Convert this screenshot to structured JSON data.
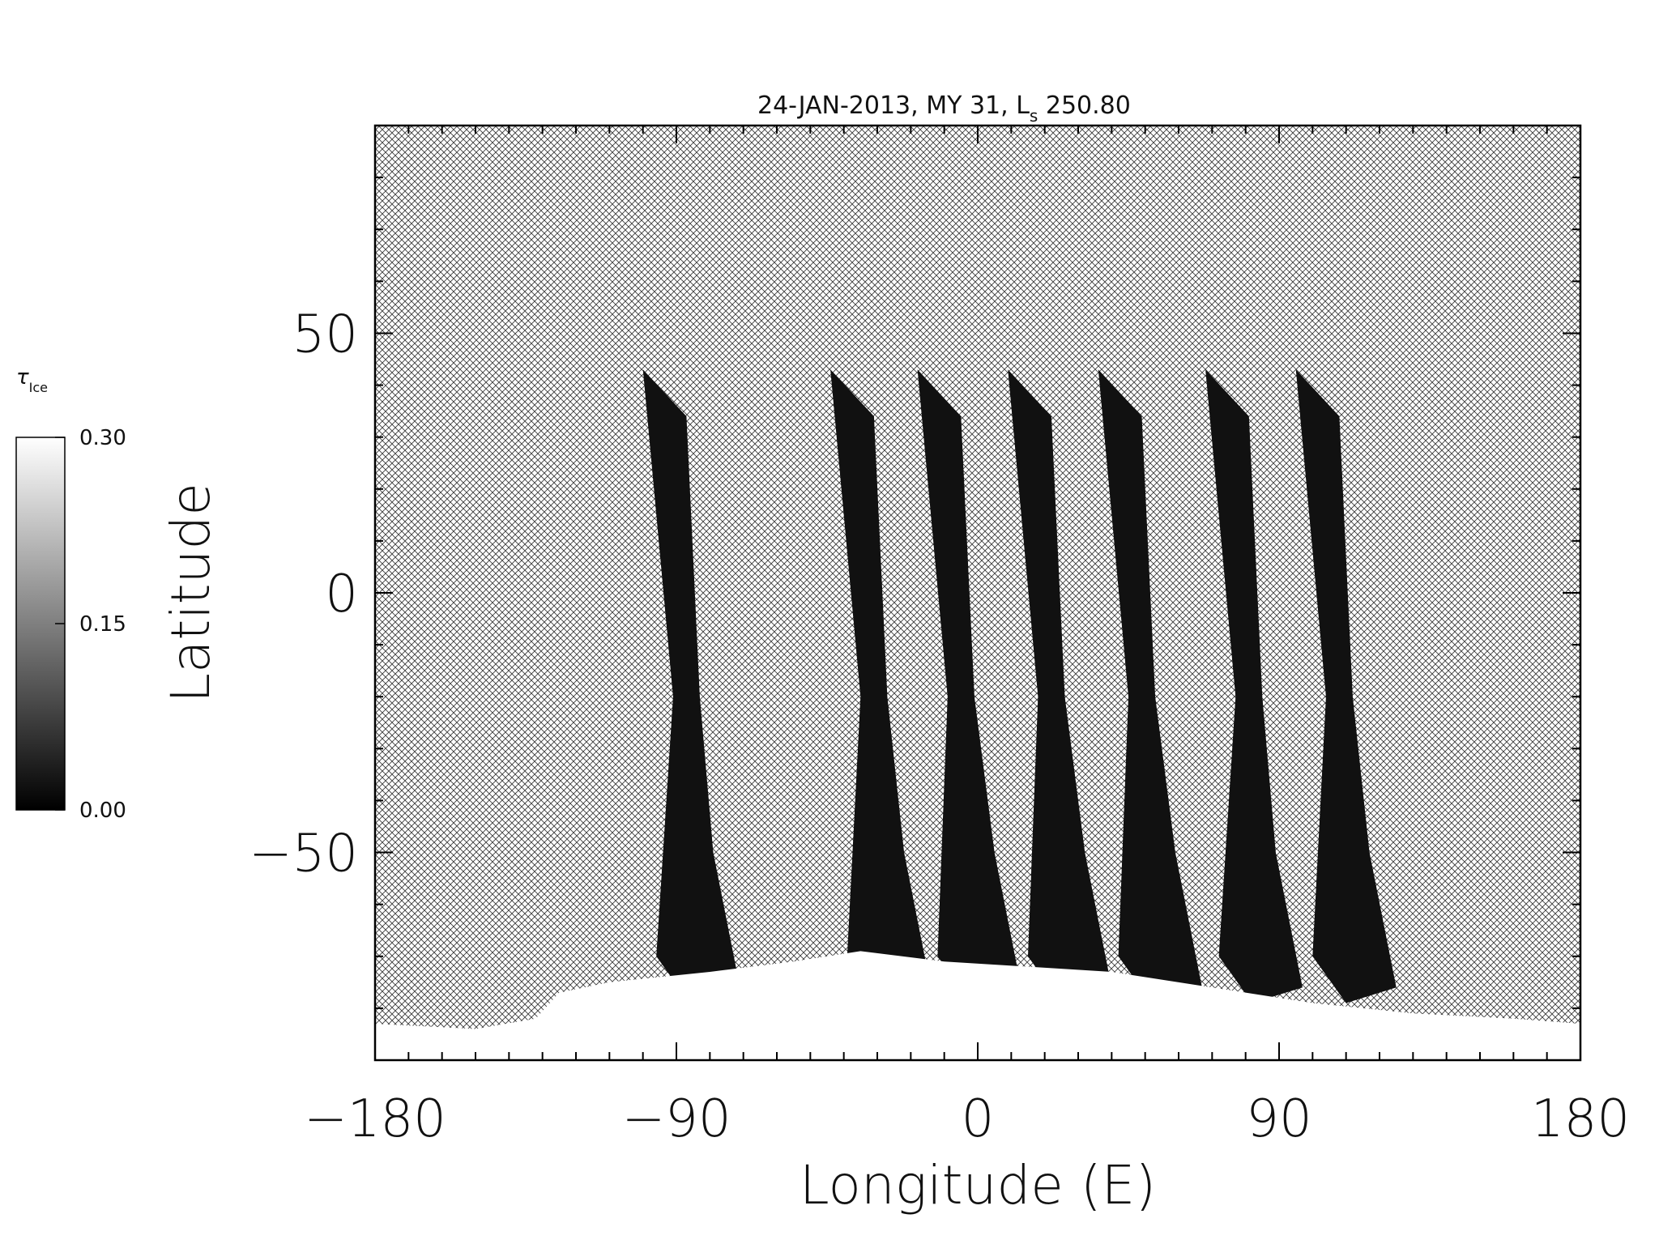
{
  "chart_data": {
    "type": "heatmap",
    "title": "24-JAN-2013, MY 31,  L",
    "title_subscript": "s",
    "title_suffix": " 250.80",
    "xlabel": "Longitude (E)",
    "ylabel": "Latitude",
    "xlim": [
      -180,
      180
    ],
    "ylim": [
      -90,
      90
    ],
    "xticks": [
      -180,
      -90,
      0,
      90,
      180
    ],
    "yticks": [
      -50,
      0,
      50
    ],
    "xtick_labels": [
      "−180",
      "−90",
      "0",
      "90",
      "180"
    ],
    "ytick_labels": [
      "−50",
      "0",
      "50"
    ],
    "grid": false,
    "no_data_fill": "crosshatch",
    "colorbar": {
      "label": "τ",
      "label_subscript": "Ice",
      "min": 0.0,
      "max": 0.3,
      "ticks": [
        0.0,
        0.15,
        0.3
      ],
      "tick_labels": [
        "0.00",
        "0.15",
        "0.30"
      ],
      "colormap": "grayscale",
      "placement": "left"
    },
    "swaths": [
      {
        "lon_north": -100,
        "lon_south": -71
      },
      {
        "lon_north": -44,
        "lon_south": -14
      },
      {
        "lon_north": -18,
        "lon_south": 13
      },
      {
        "lon_north": 9,
        "lon_south": 40
      },
      {
        "lon_north": 36,
        "lon_south": 67
      },
      {
        "lon_north": 68,
        "lon_south": 97
      },
      {
        "lon_north": 95,
        "lon_south": 125
      }
    ],
    "swath_lat_north": 43,
    "swath_value": 0.02,
    "polar_ice_value": 0.3
  }
}
